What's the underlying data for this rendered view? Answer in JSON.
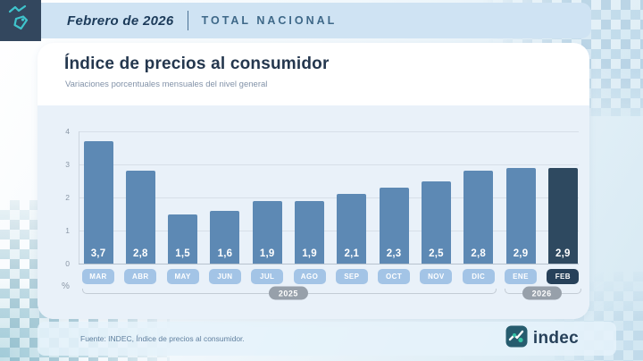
{
  "header": {
    "period": "Febrero de 2026",
    "scope": "TOTAL NACIONAL"
  },
  "card": {
    "title": "Índice de precios al consumidor",
    "subtitle": "Variaciones porcentuales mensuales del nivel general"
  },
  "chart_data": {
    "type": "bar",
    "title": "Índice de precios al consumidor",
    "subtitle": "Variaciones porcentuales mensuales del nivel general",
    "categories": [
      "MAR",
      "ABR",
      "MAY",
      "JUN",
      "JUL",
      "AGO",
      "SEP",
      "OCT",
      "NOV",
      "DIC",
      "ENE",
      "FEB"
    ],
    "values": [
      3.7,
      2.8,
      1.5,
      1.6,
      1.9,
      1.9,
      2.1,
      2.3,
      2.5,
      2.8,
      2.9,
      2.9
    ],
    "value_labels": [
      "3,7",
      "2,8",
      "1,5",
      "1,6",
      "1,9",
      "1,9",
      "2,1",
      "2,3",
      "2,5",
      "2,8",
      "2,9",
      "2,9"
    ],
    "ylim": [
      0,
      4
    ],
    "yticks": [
      0,
      1,
      2,
      3,
      4
    ],
    "ylabel": "%",
    "grid": true,
    "legend": "none",
    "highlight_index": 11,
    "year_groups": [
      {
        "label": "2025",
        "from": "MAR",
        "to": "DIC"
      },
      {
        "label": "2026",
        "from": "ENE",
        "to": "FEB"
      }
    ],
    "colors": {
      "bar": "#5d89b4",
      "bar_highlight": "#2e4960",
      "month_pill": "#a3c4e6",
      "month_pill_highlight": "#27415a",
      "year_pill": "#97a0aa"
    }
  },
  "footer": {
    "source": "Fuente: INDEC, Índice de precios al consumidor.",
    "logo_text": "indec"
  },
  "icons": {
    "tag_icon": "price-tag-with-trend",
    "logo_icon": "indec-trend-mark"
  },
  "brand_colors": {
    "header_square": "#33475e",
    "teal_accent": "#3fc4cc",
    "banner_bg": "#cfe3f3",
    "panel_bg": "#e9f1f9",
    "logo_square": "#265c6e",
    "logo_green": "#35c4a5"
  }
}
